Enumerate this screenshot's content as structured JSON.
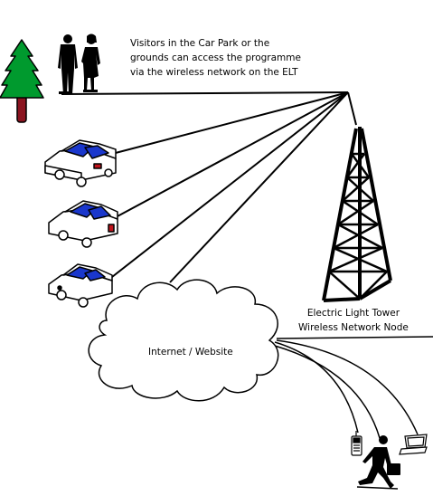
{
  "captions": {
    "visitors": [
      "Visitors in the Car Park or the",
      "grounds can access the programme",
      "via the wireless network on the ELT"
    ],
    "cloud": "Internet / Website",
    "tower": [
      "Electric Light Tower",
      "Wireless Network Node"
    ]
  },
  "colors": {
    "tree_foliage": "#009a2e",
    "tree_trunk": "#8b1420",
    "car_window": "#1a37cc",
    "car_taillight": "#c0141c",
    "line": "#000000"
  },
  "icons": [
    "pine-tree-icon",
    "business-people-icon",
    "car-icon",
    "tower-icon",
    "cloud-icon",
    "mobile-phone-icon",
    "walking-man-icon",
    "laptop-icon"
  ]
}
